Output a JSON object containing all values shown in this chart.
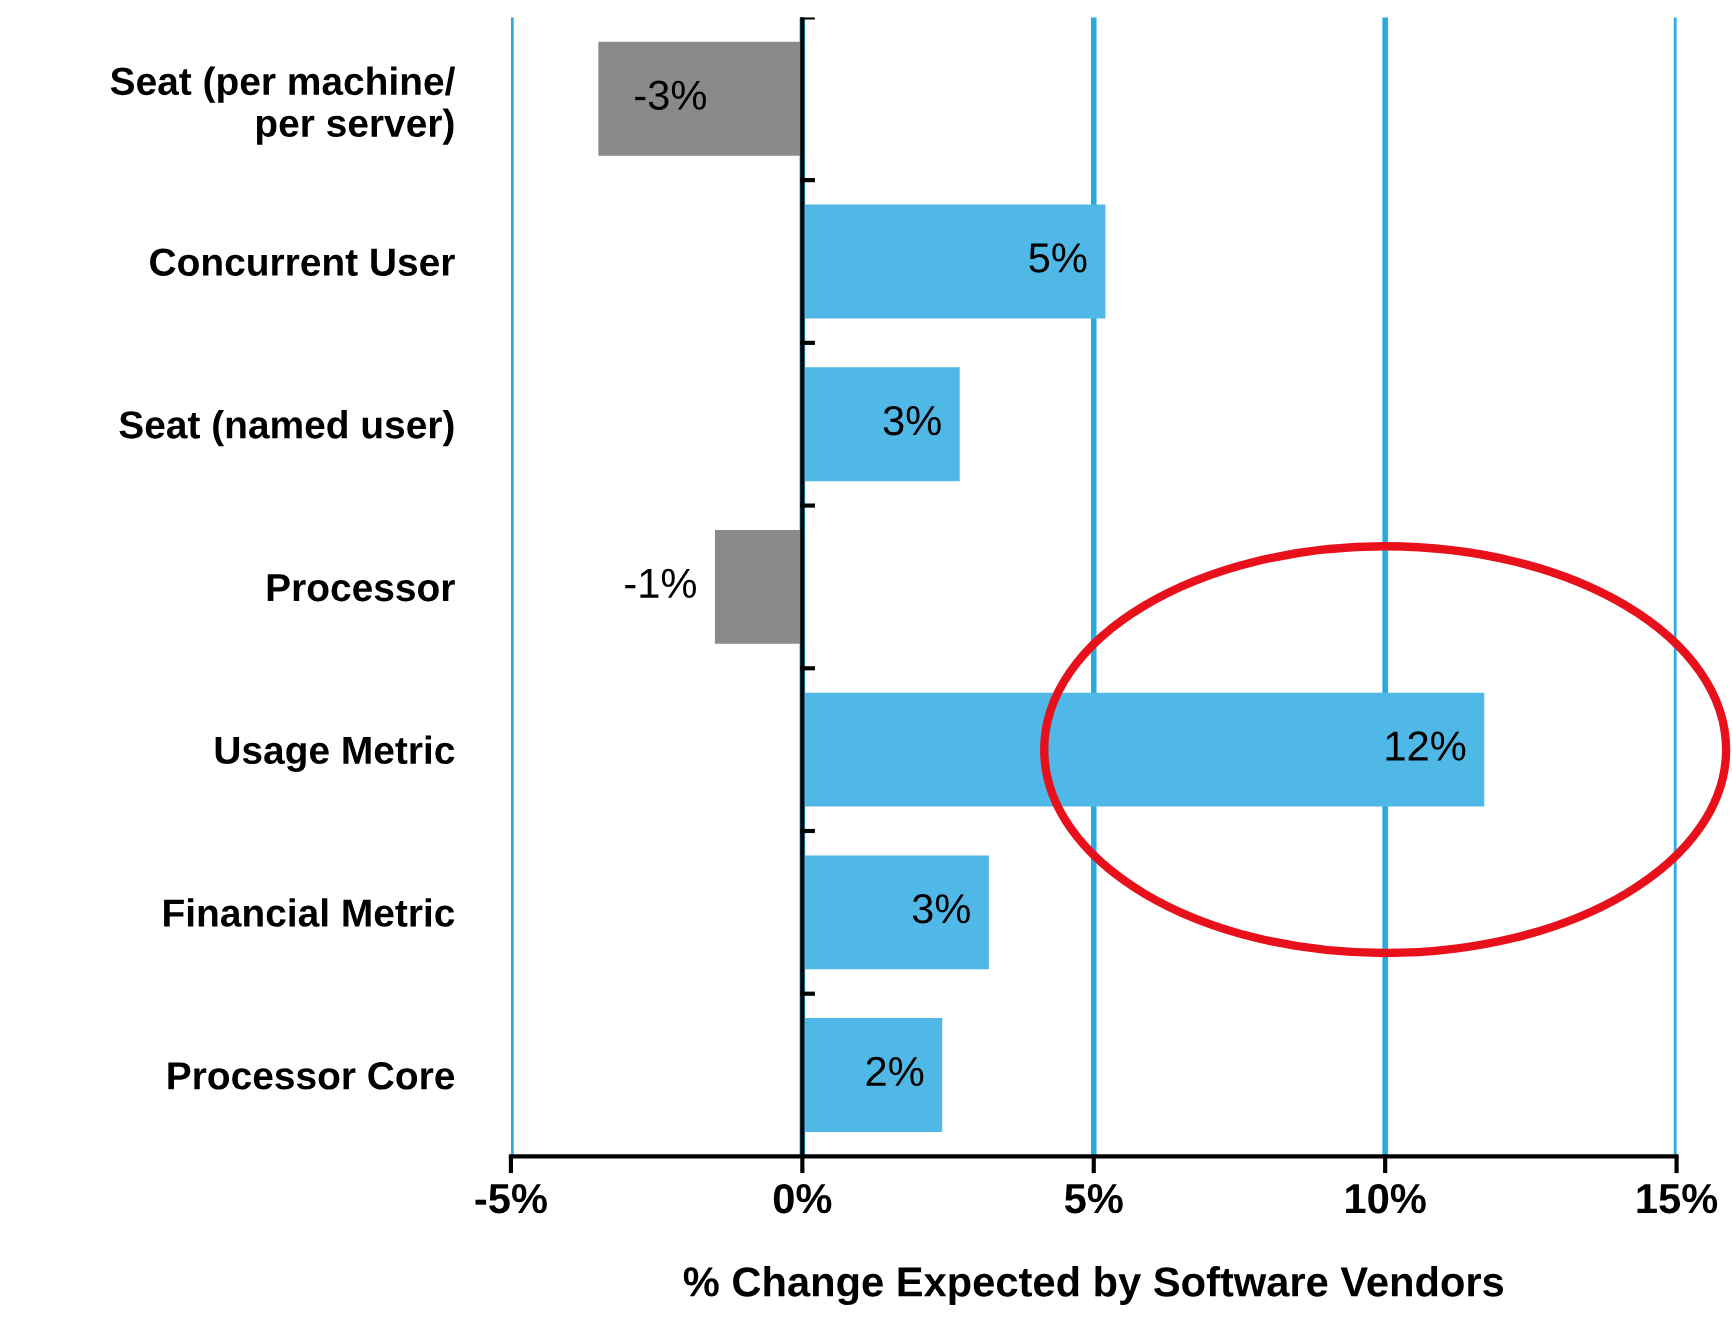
{
  "chart_data": {
    "type": "bar",
    "orientation": "horizontal",
    "xlabel": "% Change Expected by Software Vendors",
    "categories": [
      "Seat (per machine/\nper server)",
      "Concurrent User",
      "Seat (named user)",
      "Processor",
      "Usage Metric",
      "Financial Metric",
      "Processor Core"
    ],
    "values": [
      -3.5,
      5.2,
      2.7,
      -1.5,
      11.7,
      3.2,
      2.4
    ],
    "value_labels": [
      "-3%",
      "5%",
      "3%",
      "-1%",
      "12%",
      "3%",
      "2%"
    ],
    "colors": [
      "#8a8a8a",
      "#4fb8e6",
      "#4fb8e6",
      "#8a8a8a",
      "#4fb8e6",
      "#4fb8e6",
      "#4fb8e6"
    ],
    "xlim": [
      -5,
      15
    ],
    "xticks": [
      {
        "value": -5,
        "label": "-5%"
      },
      {
        "value": 0,
        "label": "0%"
      },
      {
        "value": 5,
        "label": "5%"
      },
      {
        "value": 10,
        "label": "10%"
      },
      {
        "value": 15,
        "label": "15%"
      }
    ],
    "grid": "x"
  }
}
